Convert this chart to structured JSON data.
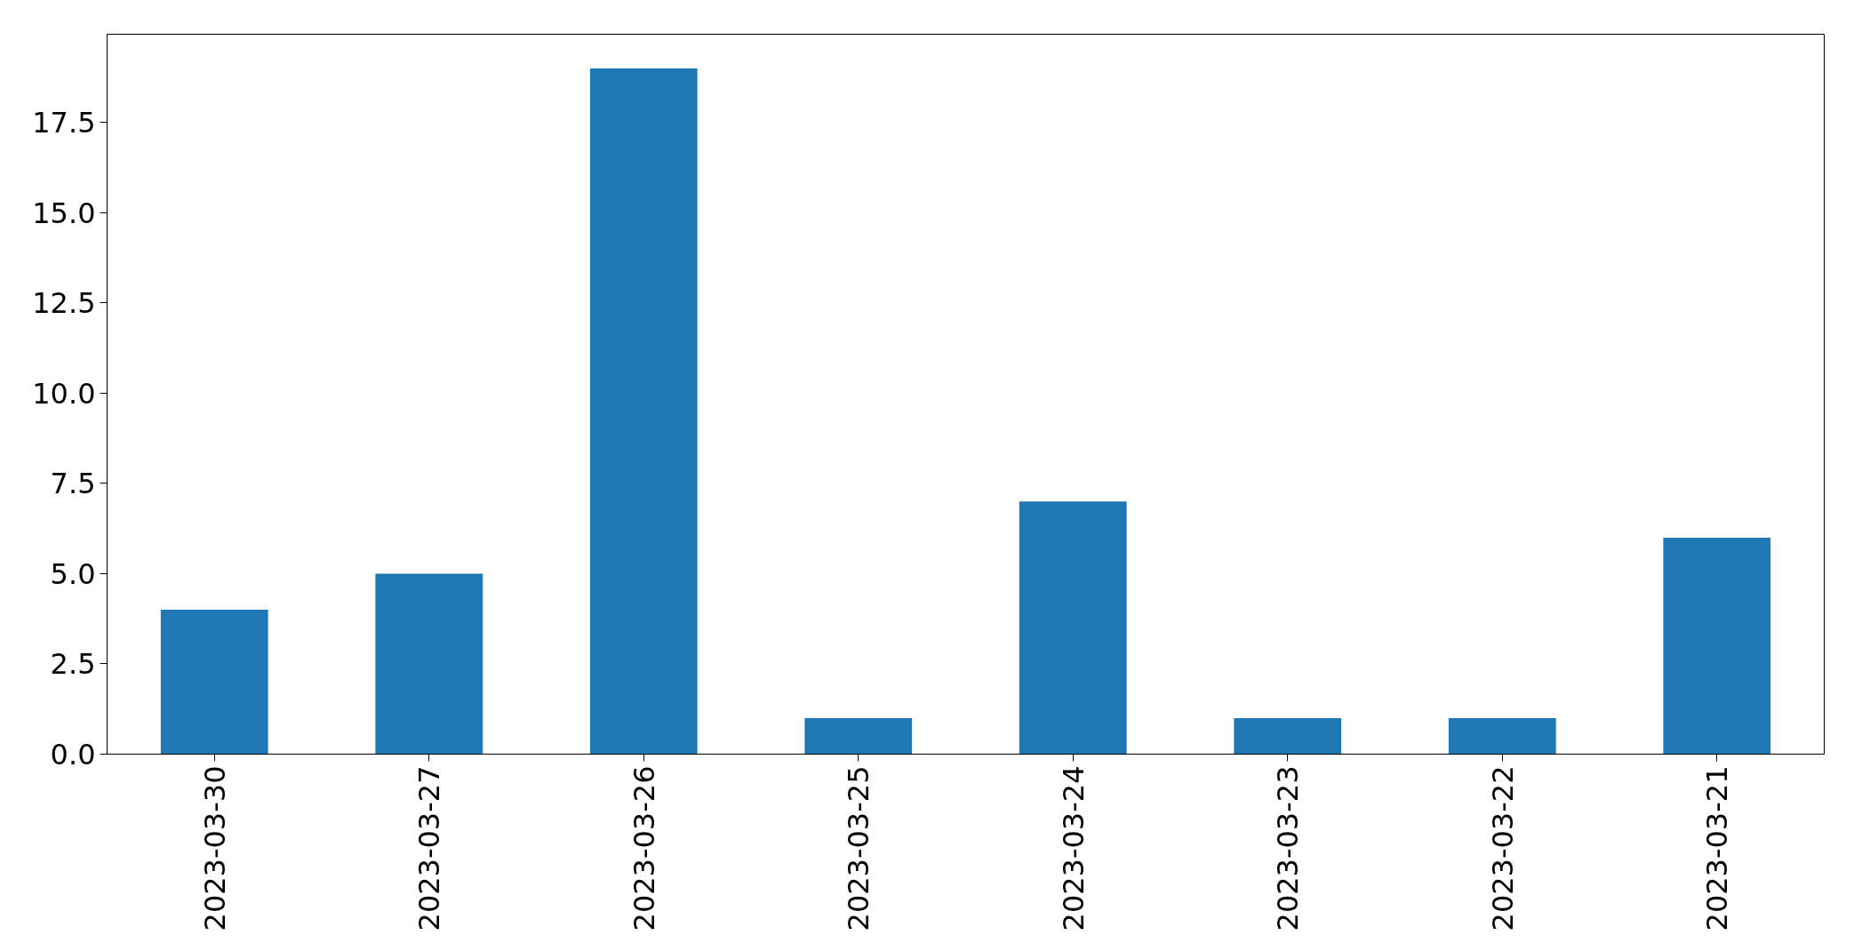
{
  "chart_data": {
    "type": "bar",
    "categories": [
      "2023-03-30",
      "2023-03-27",
      "2023-03-26",
      "2023-03-25",
      "2023-03-24",
      "2023-03-23",
      "2023-03-22",
      "2023-03-21"
    ],
    "values": [
      4,
      5,
      19,
      1,
      7,
      1,
      1,
      6
    ],
    "color": "#1f77b4",
    "ylim": [
      0,
      19.95
    ],
    "yticks": [
      {
        "value": 0,
        "label": "0.0"
      },
      2.5,
      {
        "value": 5,
        "label": "5.0"
      },
      7.5,
      {
        "value": 10,
        "label": "10.0"
      },
      12.5,
      {
        "value": 15,
        "label": "15.0"
      },
      17.5
    ],
    "grid": false
  }
}
